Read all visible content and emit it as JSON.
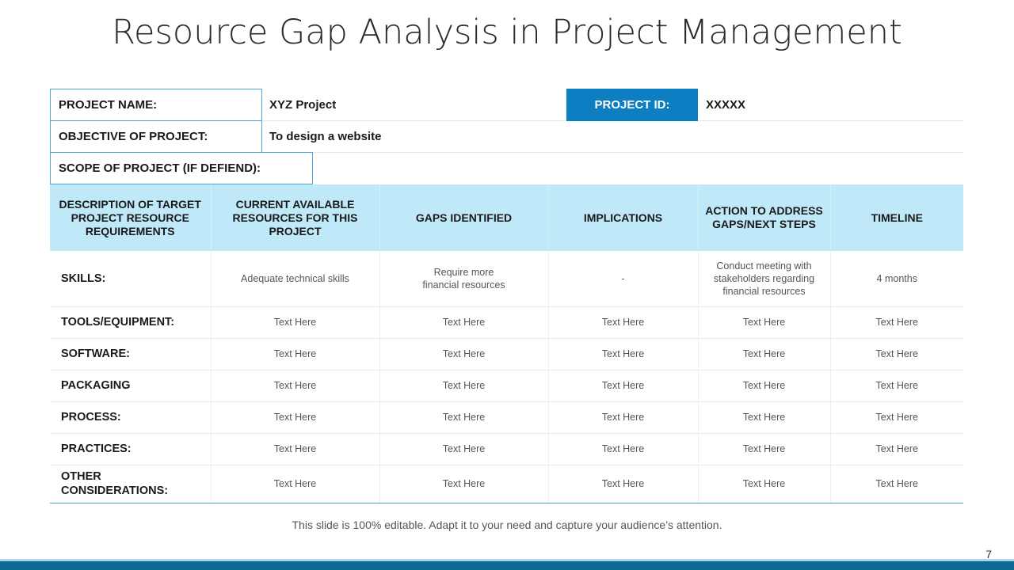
{
  "title": "Resource Gap Analysis in Project Management",
  "info": {
    "project_name_label": "PROJECT NAME:",
    "project_name_value": "XYZ Project",
    "project_id_label": "PROJECT ID:",
    "project_id_value": "XXXXX",
    "objective_label": "OBJECTIVE OF PROJECT:",
    "objective_value": "To design a website",
    "scope_label": "SCOPE OF PROJECT (IF DEFIEND):"
  },
  "table": {
    "headers": [
      "DESCRIPTION OF TARGET PROJECT RESOURCE REQUIREMENTS",
      "CURRENT AVAILABLE RESOURCES FOR THIS PROJECT",
      "GAPS IDENTIFIED",
      "IMPLICATIONS",
      "ACTION TO ADDRESS GAPS/NEXT STEPS",
      "TIMELINE"
    ],
    "rows": [
      [
        "SKILLS:",
        "Adequate technical skills",
        "Require more financial resources",
        "-",
        "Conduct meeting with stakeholders regarding financial resources",
        "4 months"
      ],
      [
        "TOOLS/EQUIPMENT:",
        "Text Here",
        "Text Here",
        "Text Here",
        "Text Here",
        "Text Here"
      ],
      [
        "SOFTWARE:",
        "Text Here",
        "Text Here",
        "Text Here",
        "Text Here",
        "Text Here"
      ],
      [
        "PACKAGING",
        "Text Here",
        "Text Here",
        "Text Here",
        "Text Here",
        "Text Here"
      ],
      [
        "PROCESS:",
        "Text Here",
        "Text Here",
        "Text Here",
        "Text Here",
        "Text Here"
      ],
      [
        "PRACTICES:",
        "Text Here",
        "Text Here",
        "Text Here",
        "Text Here",
        "Text Here"
      ],
      [
        "OTHER CONSIDERATIONS:",
        "Text Here",
        "Text Here",
        "Text Here",
        "Text Here",
        "Text Here"
      ]
    ]
  },
  "footnote": "This slide is 100% editable. Adapt it to your need and capture your audience’s attention.",
  "page_number": "7",
  "colors": {
    "accent": "#0e7ec2",
    "header_fill": "#bfe8f8",
    "footer_bar": "#0c6a94"
  }
}
